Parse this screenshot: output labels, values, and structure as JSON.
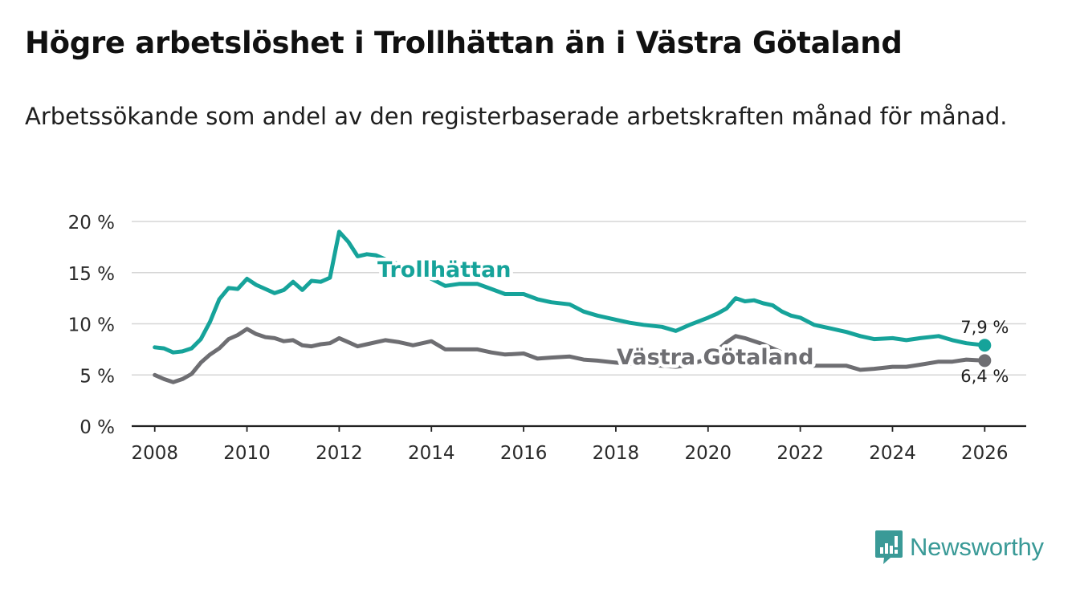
{
  "title": "Högre arbetslöshet i Trollhättan än i Västra Götaland",
  "subtitle": "Arbetssökande som andel av den registerbaserade arbetskraften månad för månad.",
  "brand": {
    "name": "Newsworthy"
  },
  "chart_data": {
    "type": "line",
    "title": "Högre arbetslöshet i Trollhättan än i Västra Götaland",
    "xlabel": "",
    "ylabel": "",
    "xlim": [
      2007.5,
      2026.9
    ],
    "ylim": [
      0,
      20
    ],
    "grid": true,
    "xticks": [
      2008,
      2010,
      2012,
      2014,
      2016,
      2018,
      2020,
      2022,
      2024,
      2026
    ],
    "xtick_labels": [
      "2008",
      "2010",
      "2012",
      "2014",
      "2016",
      "2018",
      "2020",
      "2022",
      "2024",
      "2026"
    ],
    "yticks": [
      0,
      5,
      10,
      15,
      20
    ],
    "ytick_labels": [
      "0 %",
      "5 %",
      "10 %",
      "15 %",
      "20 %"
    ],
    "series": [
      {
        "name": "Trollhättan",
        "color": "#16a39a",
        "label": "Trollhättan",
        "end_label": "7,9 %",
        "x": [
          2008.0,
          2008.2,
          2008.4,
          2008.6,
          2008.8,
          2009.0,
          2009.2,
          2009.4,
          2009.6,
          2009.8,
          2010.0,
          2010.2,
          2010.4,
          2010.6,
          2010.8,
          2011.0,
          2011.2,
          2011.4,
          2011.6,
          2011.8,
          2012.0,
          2012.2,
          2012.4,
          2012.6,
          2012.8,
          2013.0,
          2013.3,
          2013.6,
          2014.0,
          2014.3,
          2014.6,
          2015.0,
          2015.3,
          2015.6,
          2016.0,
          2016.3,
          2016.6,
          2017.0,
          2017.3,
          2017.6,
          2018.0,
          2018.3,
          2018.6,
          2019.0,
          2019.3,
          2019.6,
          2020.0,
          2020.2,
          2020.4,
          2020.6,
          2020.8,
          2021.0,
          2021.2,
          2021.4,
          2021.6,
          2021.8,
          2022.0,
          2022.3,
          2022.6,
          2023.0,
          2023.3,
          2023.6,
          2024.0,
          2024.3,
          2024.6,
          2025.0,
          2025.3,
          2025.6,
          2026.0
        ],
        "values": [
          7.7,
          7.6,
          7.2,
          7.3,
          7.6,
          8.5,
          10.2,
          12.4,
          13.5,
          13.4,
          14.4,
          13.8,
          13.4,
          13.0,
          13.3,
          14.1,
          13.3,
          14.2,
          14.1,
          14.5,
          19.0,
          18.0,
          16.6,
          16.8,
          16.7,
          16.3,
          15.8,
          15.2,
          14.4,
          13.7,
          13.9,
          13.9,
          13.4,
          12.9,
          12.9,
          12.4,
          12.1,
          11.9,
          11.2,
          10.8,
          10.4,
          10.1,
          9.9,
          9.7,
          9.3,
          9.9,
          10.6,
          11.0,
          11.5,
          12.5,
          12.2,
          12.3,
          12.0,
          11.8,
          11.2,
          10.8,
          10.6,
          9.9,
          9.6,
          9.2,
          8.8,
          8.5,
          8.6,
          8.4,
          8.6,
          8.8,
          8.4,
          8.1,
          7.9
        ]
      },
      {
        "name": "Västra Götaland",
        "color": "#6e6e72",
        "label": "Västra Götaland",
        "end_label": "6,4 %",
        "x": [
          2008.0,
          2008.2,
          2008.4,
          2008.6,
          2008.8,
          2009.0,
          2009.2,
          2009.4,
          2009.6,
          2009.8,
          2010.0,
          2010.2,
          2010.4,
          2010.6,
          2010.8,
          2011.0,
          2011.2,
          2011.4,
          2011.6,
          2011.8,
          2012.0,
          2012.2,
          2012.4,
          2012.6,
          2012.8,
          2013.0,
          2013.3,
          2013.6,
          2014.0,
          2014.3,
          2014.6,
          2015.0,
          2015.3,
          2015.6,
          2016.0,
          2016.3,
          2016.6,
          2017.0,
          2017.3,
          2017.6,
          2018.0,
          2018.3,
          2018.6,
          2019.0,
          2019.3,
          2019.6,
          2020.0,
          2020.2,
          2020.4,
          2020.6,
          2020.8,
          2021.0,
          2021.2,
          2021.4,
          2021.6,
          2021.8,
          2022.0,
          2022.3,
          2022.6,
          2023.0,
          2023.3,
          2023.6,
          2024.0,
          2024.3,
          2024.6,
          2025.0,
          2025.3,
          2025.6,
          2026.0
        ],
        "values": [
          5.0,
          4.6,
          4.3,
          4.6,
          5.1,
          6.2,
          7.0,
          7.6,
          8.5,
          8.9,
          9.5,
          9.0,
          8.7,
          8.6,
          8.3,
          8.4,
          7.9,
          7.8,
          8.0,
          8.1,
          8.6,
          8.2,
          7.8,
          8.0,
          8.2,
          8.4,
          8.2,
          7.9,
          8.3,
          7.5,
          7.5,
          7.5,
          7.2,
          7.0,
          7.1,
          6.6,
          6.7,
          6.8,
          6.5,
          6.4,
          6.2,
          6.1,
          6.0,
          5.9,
          5.8,
          6.0,
          6.6,
          7.4,
          8.2,
          8.8,
          8.6,
          8.3,
          8.0,
          7.6,
          7.2,
          6.8,
          6.3,
          5.9,
          5.9,
          5.9,
          5.5,
          5.6,
          5.8,
          5.8,
          6.0,
          6.3,
          6.3,
          6.5,
          6.4
        ]
      }
    ]
  }
}
